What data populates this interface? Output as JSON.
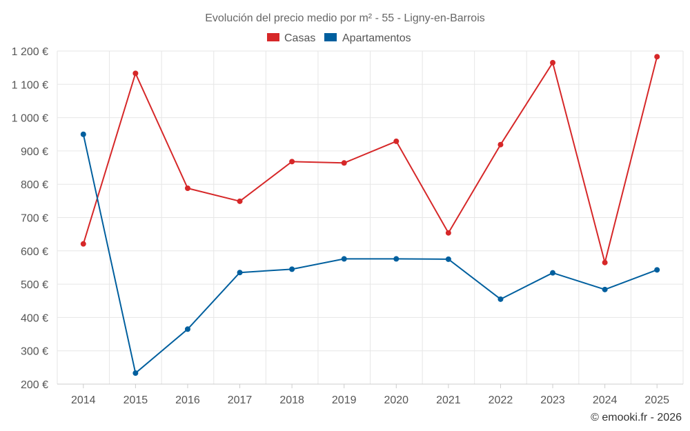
{
  "chart_data": {
    "type": "line",
    "title": "Evolución del precio medio por m² - 55 - Ligny-en-Barrois",
    "categories": [
      "2014",
      "2015",
      "2016",
      "2017",
      "2018",
      "2019",
      "2020",
      "2021",
      "2022",
      "2023",
      "2024",
      "2025"
    ],
    "series": [
      {
        "name": "Casas",
        "color": "#d62728",
        "values": [
          621,
          1133,
          788,
          749,
          868,
          864,
          929,
          654,
          919,
          1165,
          565,
          1183
        ]
      },
      {
        "name": "Apartamentos",
        "color": "#005f9e",
        "values": [
          950,
          233,
          365,
          535,
          545,
          576,
          576,
          575,
          455,
          534,
          484,
          543
        ]
      }
    ],
    "ylim": [
      200,
      1200
    ],
    "yticks": [
      "200 €",
      "300 €",
      "400 €",
      "500 €",
      "600 €",
      "700 €",
      "800 €",
      "900 €",
      "1 000 €",
      "1 100 €",
      "1 200 €"
    ],
    "grid": true,
    "legend": "top-center"
  },
  "credit": "© emooki.fr - 2026"
}
